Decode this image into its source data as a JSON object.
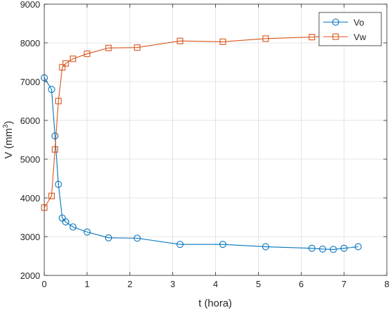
{
  "chart_data": {
    "type": "line",
    "title": "",
    "xlabel": "t (hora)",
    "ylabel_base": "V (mm",
    "ylabel_sup": "3",
    "ylabel_close": ")",
    "xlim": [
      0,
      8
    ],
    "ylim": [
      2000,
      9000
    ],
    "xticks": [
      0,
      1,
      2,
      3,
      4,
      5,
      6,
      7,
      8
    ],
    "yticks": [
      2000,
      3000,
      4000,
      5000,
      6000,
      7000,
      8000,
      9000
    ],
    "grid": true,
    "legend_position": "top-right",
    "series": [
      {
        "name": "Vo",
        "color": "#0072BD",
        "marker": "circle",
        "x": [
          0.0,
          0.17,
          0.25,
          0.33,
          0.42,
          0.5,
          0.67,
          1.0,
          1.5,
          2.17,
          3.17,
          4.17,
          5.17,
          6.25,
          6.5,
          6.75,
          7.0,
          7.33
        ],
        "y": [
          7100,
          6800,
          5600,
          4350,
          3480,
          3380,
          3250,
          3120,
          2970,
          2960,
          2800,
          2800,
          2740,
          2700,
          2680,
          2670,
          2700,
          2740
        ]
      },
      {
        "name": "Vw",
        "color": "#D95319",
        "marker": "square",
        "x": [
          0.0,
          0.17,
          0.25,
          0.33,
          0.42,
          0.5,
          0.67,
          1.0,
          1.5,
          2.17,
          3.17,
          4.17,
          5.17,
          6.25,
          7.33
        ],
        "y": [
          3750,
          4050,
          5250,
          6500,
          7370,
          7470,
          7590,
          7720,
          7870,
          7880,
          8050,
          8030,
          8110,
          8150,
          8220
        ]
      }
    ]
  }
}
